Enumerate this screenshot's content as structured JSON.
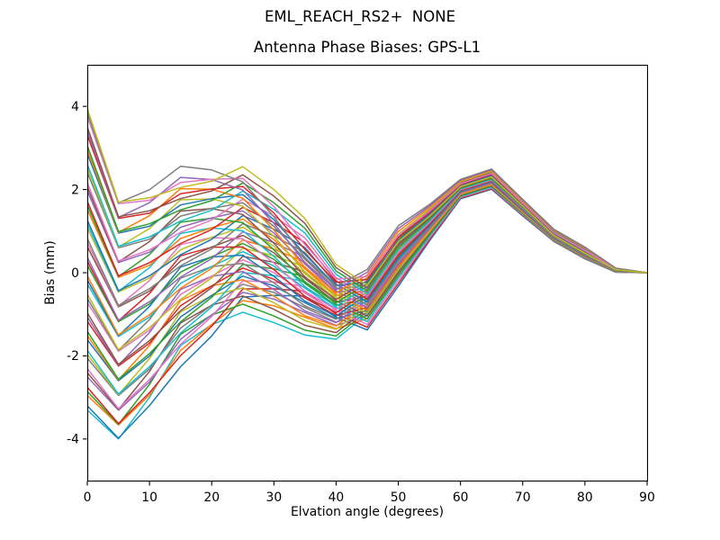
{
  "chart_data": {
    "type": "line",
    "suptitle": "EML_REACH_RS2+  NONE",
    "title": "Antenna Phase Biases: GPS-L1",
    "xlabel": "Elvation angle (degrees)",
    "ylabel": "Bias (mm)",
    "xlim": [
      0,
      90
    ],
    "ylim": [
      -5,
      5
    ],
    "xticks": [
      0,
      10,
      20,
      30,
      40,
      50,
      60,
      70,
      80,
      90
    ],
    "yticks": [
      -4,
      -2,
      0,
      2,
      4
    ],
    "grid": false,
    "legend": "none",
    "background": "#ffffff",
    "axes_edge_color": "#000000",
    "num_lines": 50,
    "line_width": 1.5,
    "color_cycle": [
      "#1f77b4",
      "#ff7f0e",
      "#2ca02c",
      "#d62728",
      "#9467bd",
      "#8c564b",
      "#e377c2",
      "#7f7f7f",
      "#bcbd22",
      "#17becf"
    ],
    "x": [
      0,
      5,
      10,
      15,
      20,
      25,
      30,
      35,
      40,
      45,
      50,
      55,
      60,
      65,
      70,
      75,
      80,
      85,
      90
    ],
    "mean_curve": [
      0.4,
      -1.0,
      -0.6,
      0.15,
      0.5,
      0.8,
      0.4,
      -0.2,
      -0.75,
      -0.6,
      0.4,
      1.2,
      2.0,
      2.25,
      1.56,
      0.9,
      0.47,
      0.06,
      0
    ],
    "envelope_upper": [
      4.05,
      1.9,
      2.1,
      2.65,
      2.55,
      2.55,
      2.0,
      1.3,
      0.2,
      0.1,
      1.15,
      1.65,
      2.25,
      2.5,
      1.77,
      1.05,
      0.62,
      0.11,
      0
    ],
    "envelope_lower": [
      -3.35,
      -4.1,
      -3.3,
      -2.35,
      -1.6,
      -0.95,
      -1.2,
      -1.5,
      -1.6,
      -1.4,
      -0.35,
      0.75,
      1.77,
      2.0,
      1.36,
      0.75,
      0.33,
      0.01,
      0
    ],
    "family": {
      "note": "line i: y[j] = shape_templates[template_index[i]][j] + offset_factors[i] * envelope_half_width[j]; color = color_cycle[color_index[i]]",
      "shape_templates": [
        [
          0.35,
          -1.1,
          -0.45,
          0.45,
          0.65,
          0.65,
          0.1,
          -0.55,
          -0.95,
          -0.45,
          0.6,
          1.35,
          2.1,
          2.35,
          1.65,
          0.98,
          0.55,
          0.08,
          0
        ],
        [
          0.3,
          -1.2,
          -0.75,
          -0.15,
          0.3,
          0.95,
          0.7,
          0.35,
          -0.45,
          -0.85,
          0.2,
          1.05,
          1.92,
          2.15,
          1.48,
          0.82,
          0.4,
          0.04,
          0
        ],
        [
          0.4,
          -1.0,
          -0.6,
          0.15,
          0.5,
          0.8,
          0.4,
          -0.2,
          -0.75,
          -0.6,
          0.4,
          1.2,
          2.0,
          2.25,
          1.56,
          0.9,
          0.47,
          0.06,
          0
        ]
      ],
      "envelope_half_width": [
        3.65,
        2.9,
        2.55,
        2.2,
        1.9,
        1.6,
        1.3,
        0.95,
        0.65,
        0.55,
        0.55,
        0.3,
        0.15,
        0.15,
        0.12,
        0.07,
        0.07,
        0.03,
        0
      ],
      "offset_factors": [
        -1,
        -0.959,
        -0.918,
        -0.878,
        -0.837,
        -0.796,
        -0.755,
        -0.714,
        -0.673,
        -0.633,
        -0.592,
        -0.551,
        -0.51,
        -0.469,
        -0.429,
        -0.388,
        -0.347,
        -0.306,
        -0.265,
        -0.224,
        -0.184,
        -0.143,
        -0.102,
        -0.061,
        -0.02,
        0.02,
        0.061,
        0.102,
        0.143,
        0.184,
        0.224,
        0.265,
        0.306,
        0.347,
        0.388,
        0.429,
        0.469,
        0.51,
        0.551,
        0.592,
        0.633,
        0.673,
        0.714,
        0.755,
        0.796,
        0.837,
        0.878,
        0.918,
        0.959,
        1
      ],
      "template_index": [
        0,
        1,
        2,
        0,
        1,
        2,
        0,
        1,
        2,
        0,
        1,
        2,
        0,
        1,
        2,
        0,
        1,
        2,
        0,
        1,
        2,
        0,
        1,
        2,
        0,
        1,
        2,
        0,
        1,
        2,
        0,
        1,
        2,
        0,
        1,
        2,
        0,
        1,
        2,
        0,
        1,
        2,
        0,
        1,
        2,
        0,
        1,
        2,
        0,
        1
      ],
      "color_index": [
        9,
        0,
        1,
        2,
        3,
        4,
        5,
        6,
        7,
        8,
        9,
        0,
        1,
        2,
        3,
        4,
        5,
        6,
        7,
        8,
        9,
        0,
        1,
        2,
        3,
        4,
        5,
        6,
        7,
        8,
        9,
        0,
        1,
        2,
        3,
        4,
        5,
        6,
        7,
        8,
        9,
        0,
        1,
        2,
        3,
        4,
        5,
        6,
        7,
        8
      ]
    }
  }
}
